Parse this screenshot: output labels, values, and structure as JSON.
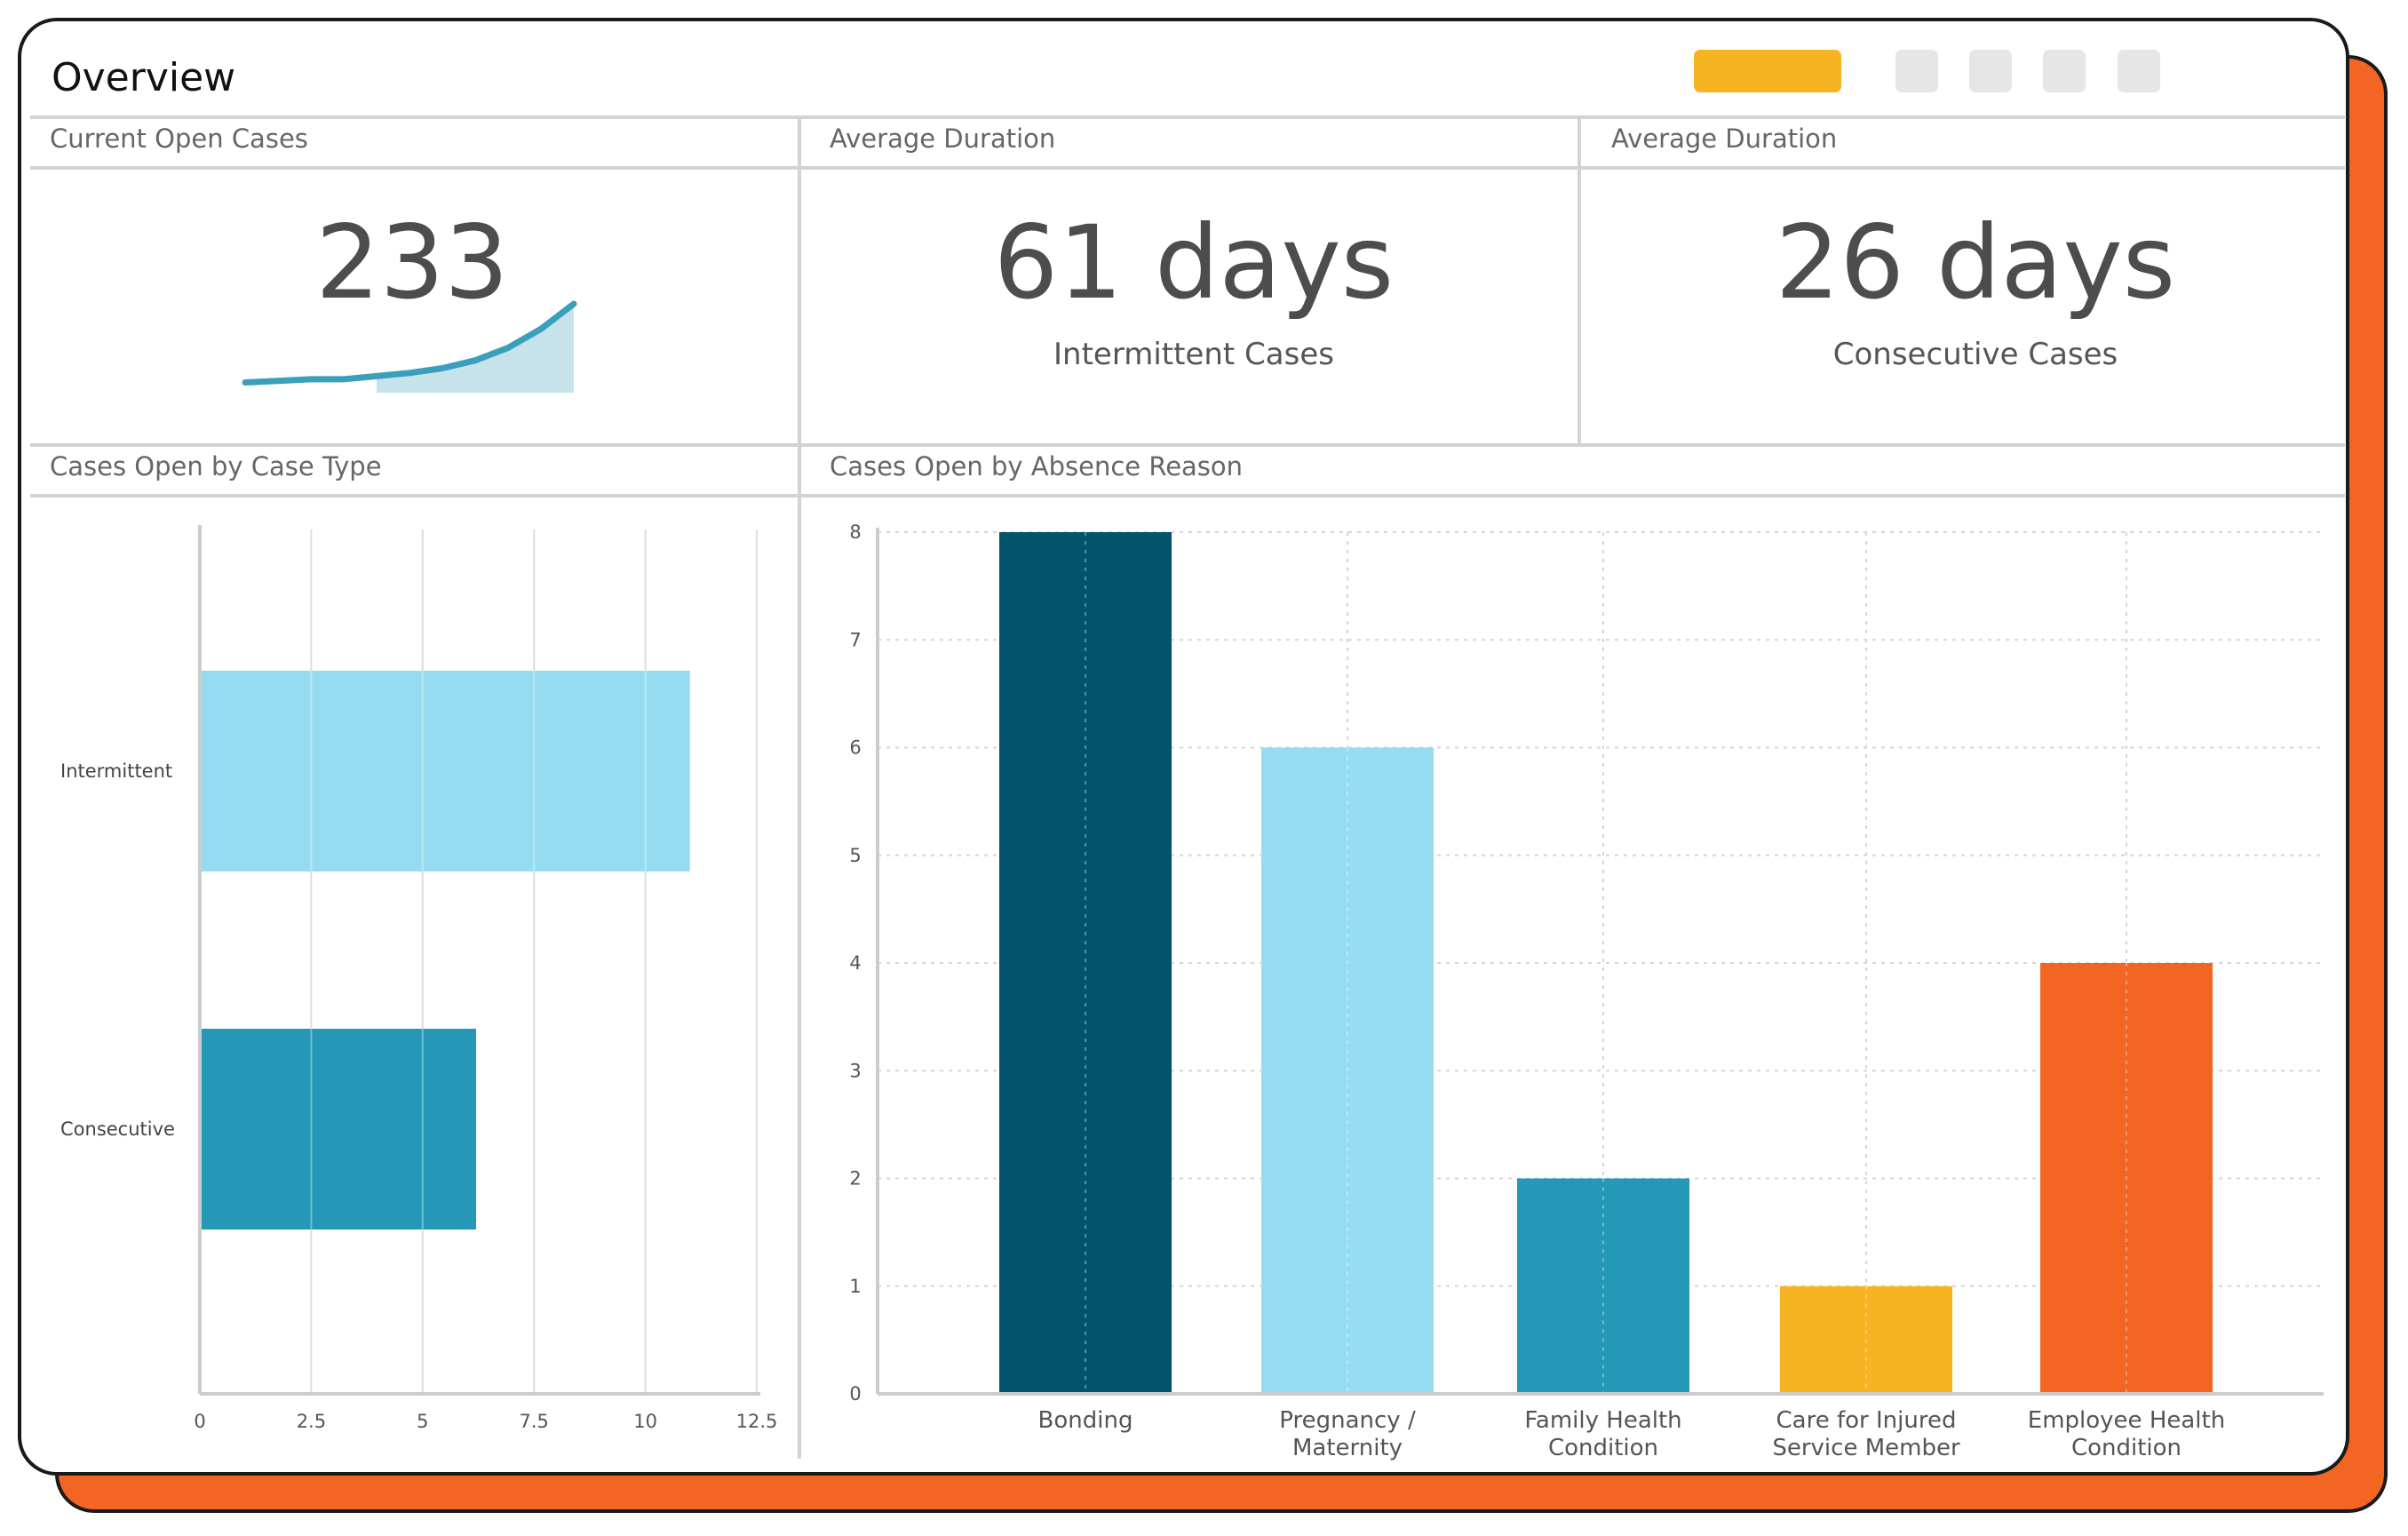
{
  "header": {
    "title": "Overview"
  },
  "sections": {
    "open_cases": {
      "title": "Current Open Cases",
      "value": "233"
    },
    "duration_intermittent": {
      "title": "Average Duration",
      "value": "61 days",
      "label": "Intermittent Cases"
    },
    "duration_consecutive": {
      "title": "Average Duration",
      "value": "26 days",
      "label": "Consecutive Cases"
    },
    "by_case_type": {
      "title": "Cases Open by Case Type"
    },
    "by_absence_reason": {
      "title": "Cases Open by Absence Reason"
    }
  },
  "colors": {
    "accent": "#F7B422",
    "shadow": "#F26522",
    "dark_teal": "#02546C",
    "light_blue": "#96DCF0",
    "teal": "#2698B7",
    "yellow": "#F7B422",
    "orange": "#F26522",
    "spark": "#3A9FBB"
  },
  "icons": [
    "header-accent-button",
    "header-control-1",
    "header-control-2",
    "header-control-3",
    "header-control-4"
  ],
  "chart_data": [
    {
      "type": "area",
      "series": [
        {
          "values": [
            2,
            3,
            4,
            4,
            6,
            8,
            11,
            16,
            24,
            36,
            52
          ]
        }
      ]
    },
    {
      "type": "bar",
      "orientation": "horizontal",
      "categories": [
        "Intermittent",
        "Consecutive"
      ],
      "values": [
        11,
        6.2
      ],
      "xlim": [
        0,
        12.5
      ],
      "xticks": [
        "0",
        "2.5",
        "5",
        "7.5",
        "10",
        "12.5"
      ],
      "grid": true
    },
    {
      "type": "bar",
      "categories": [
        [
          "Bonding"
        ],
        [
          "Pregnancy /",
          "Maternity"
        ],
        [
          "Family Health",
          "Condition"
        ],
        [
          "Care for Injured",
          "Service Member"
        ],
        [
          "Employee Health",
          "Condition"
        ]
      ],
      "values": [
        8,
        6,
        2,
        1,
        4
      ],
      "ylim": [
        0,
        8
      ],
      "yticks": [
        "0",
        "1",
        "2",
        "3",
        "4",
        "5",
        "6",
        "7",
        "8"
      ],
      "grid": true
    }
  ]
}
